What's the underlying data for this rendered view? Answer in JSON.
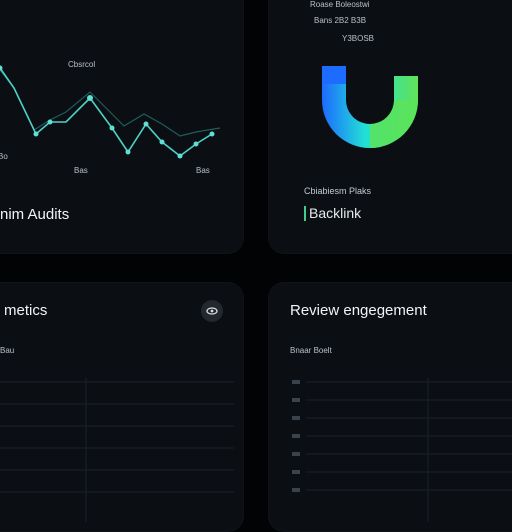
{
  "cards": {
    "top_left": {
      "title": "nim Audits",
      "point_label": "Cbsrcol",
      "axis_left": "Bo",
      "axis_bottom_left": "Bas",
      "axis_bottom_right": "Bas"
    },
    "top_right": {
      "header_line1": "Roase Boleostwi",
      "header_line2": "Bans 2B2 B3B",
      "header_line3": "Y3BOSB",
      "caption": "Cbiabiesm Plaks",
      "link": "Backlink"
    },
    "bottom_left": {
      "title": "metics",
      "subtitle": "Bau"
    },
    "bottom_right": {
      "title": "Review engegement",
      "subtitle": "Bnaar Boelt"
    }
  },
  "colors": {
    "accent_green": "#3ecf8e",
    "line_teal": "#4fd1c5",
    "donut_blue": "#2b7bff",
    "donut_cyan": "#20e0d8",
    "donut_green": "#5be35a"
  },
  "chart_data": {
    "type": "line",
    "x": [
      0,
      1,
      2,
      3,
      4,
      5,
      6,
      7,
      8,
      9,
      10,
      11,
      12
    ],
    "series": [
      {
        "values": [
          90,
          40,
          45,
          38,
          70,
          55,
          22,
          55,
          40,
          33,
          22,
          35,
          30
        ]
      },
      {
        "values": [
          80,
          48,
          40,
          42,
          60,
          50,
          30,
          45,
          35,
          28,
          25,
          30,
          28
        ]
      }
    ]
  },
  "icons": {
    "card_action": "eye-icon"
  }
}
